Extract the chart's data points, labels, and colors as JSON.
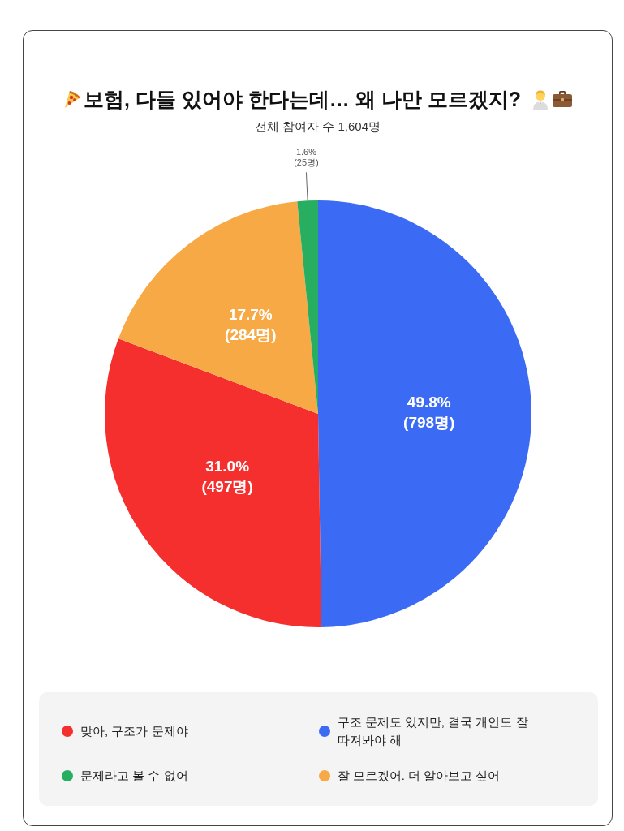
{
  "chart_data": {
    "type": "pie",
    "title": "보험, 다들 있어야 한다는데… 왜 나만 모르겠지?",
    "subtitle": "전체 참여자 수 1,604명",
    "categories": [
      "구조 문제도 있지만, 결국 개인도 잘 따져봐야 해",
      "맞아, 구조가 문제야",
      "잘 모르겠어. 더 알아보고 싶어",
      "문제라고 볼 수 없어"
    ],
    "values": [
      798,
      497,
      284,
      25
    ],
    "colors": [
      "#3b6af5",
      "#f52e2e",
      "#f6a944",
      "#27ae60"
    ],
    "value_labels": [
      "49.8%\n(798명)",
      "31.0%\n(497명)",
      "17.7%\n(284명)",
      "1.6%\n(25명)"
    ],
    "legend": "bottom"
  }
}
